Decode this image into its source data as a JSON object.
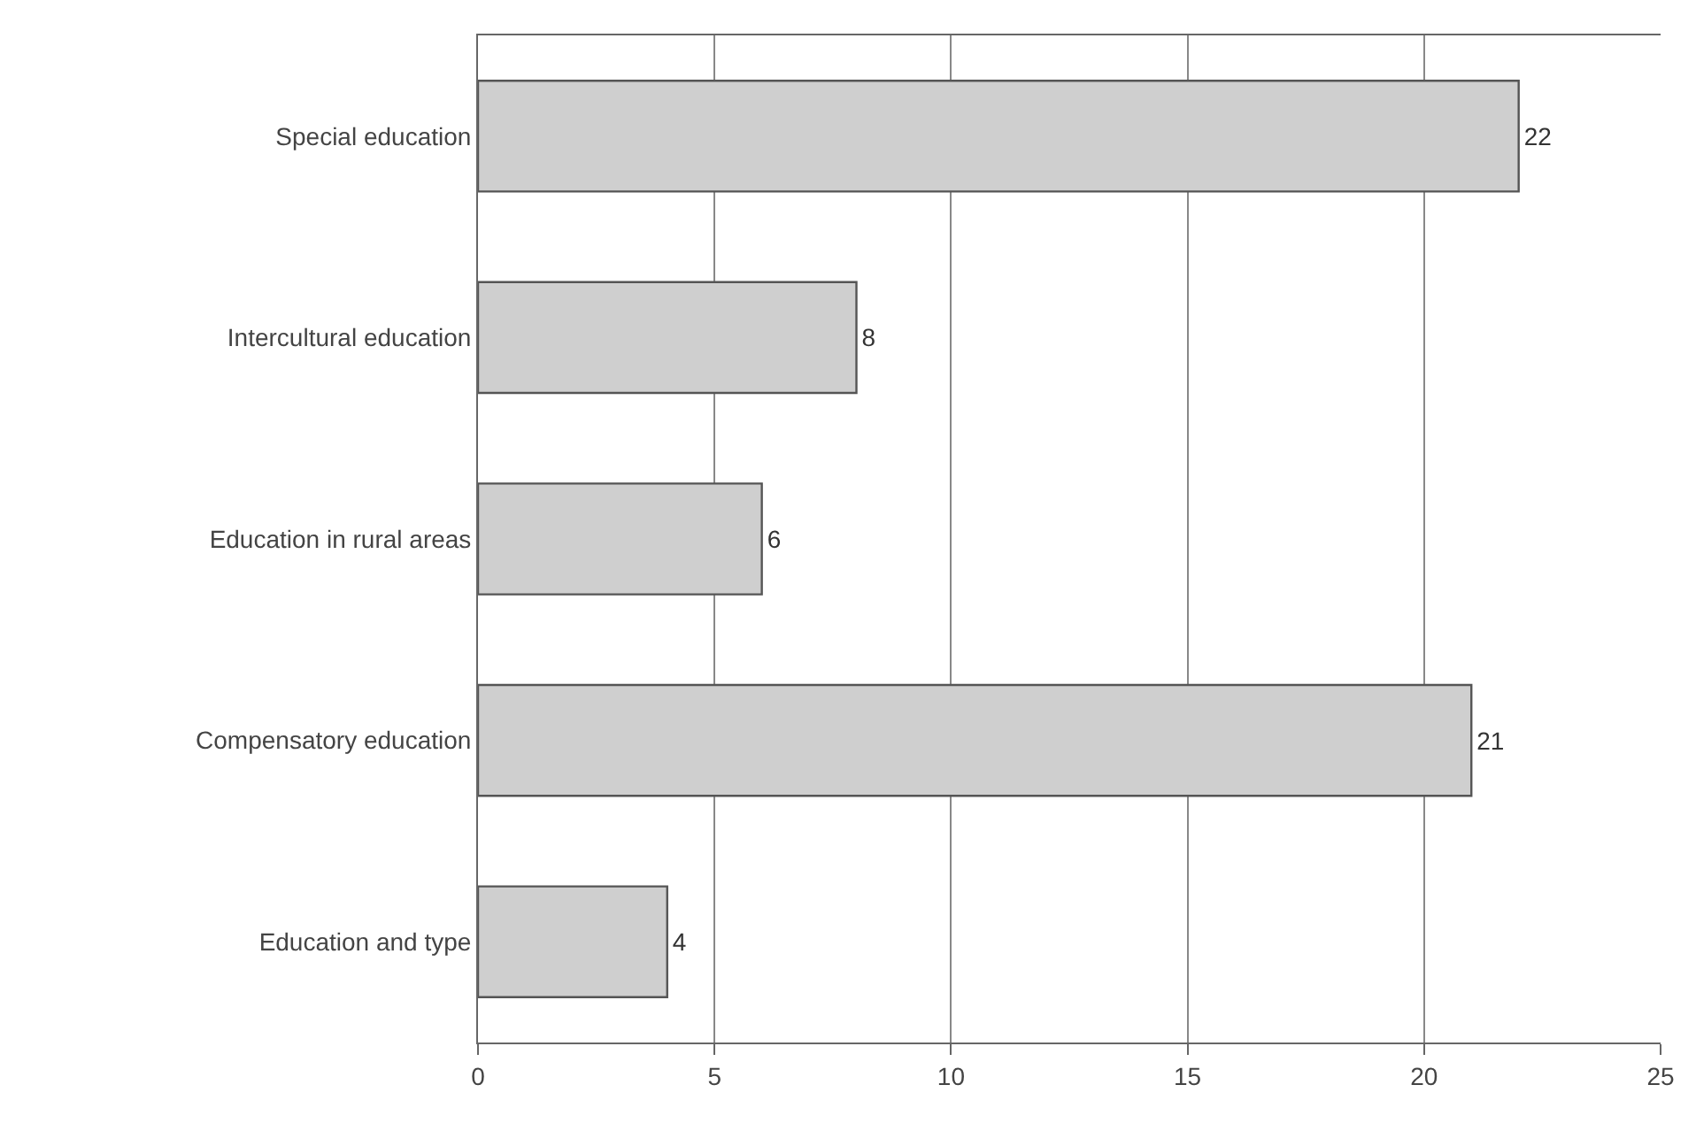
{
  "chart_data": {
    "type": "bar",
    "orientation": "horizontal",
    "categories": [
      "Special education",
      "Intercultural education",
      "Education in rural areas",
      "Compensatory education",
      "Education and type"
    ],
    "values": [
      22,
      8,
      6,
      21,
      4
    ],
    "color": "#cfcfcf",
    "xlim": [
      0,
      25
    ],
    "xticks": [
      0,
      5,
      10,
      15,
      20,
      25
    ],
    "grid": "x",
    "data_labels": true,
    "legend": false
  }
}
